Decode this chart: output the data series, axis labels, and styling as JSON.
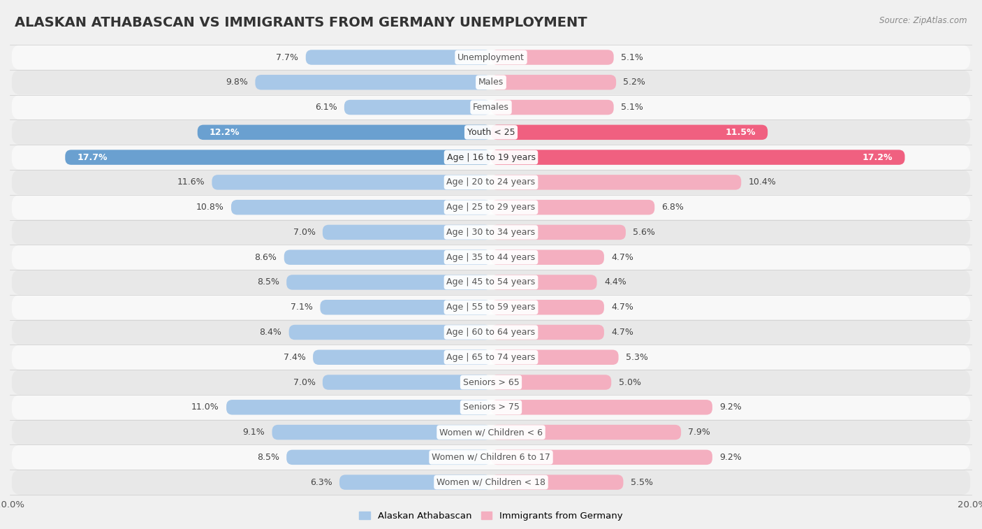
{
  "title": "ALASKAN ATHABASCAN VS IMMIGRANTS FROM GERMANY UNEMPLOYMENT",
  "source": "Source: ZipAtlas.com",
  "categories": [
    "Unemployment",
    "Males",
    "Females",
    "Youth < 25",
    "Age | 16 to 19 years",
    "Age | 20 to 24 years",
    "Age | 25 to 29 years",
    "Age | 30 to 34 years",
    "Age | 35 to 44 years",
    "Age | 45 to 54 years",
    "Age | 55 to 59 years",
    "Age | 60 to 64 years",
    "Age | 65 to 74 years",
    "Seniors > 65",
    "Seniors > 75",
    "Women w/ Children < 6",
    "Women w/ Children 6 to 17",
    "Women w/ Children < 18"
  ],
  "left_values": [
    7.7,
    9.8,
    6.1,
    12.2,
    17.7,
    11.6,
    10.8,
    7.0,
    8.6,
    8.5,
    7.1,
    8.4,
    7.4,
    7.0,
    11.0,
    9.1,
    8.5,
    6.3
  ],
  "right_values": [
    5.1,
    5.2,
    5.1,
    11.5,
    17.2,
    10.4,
    6.8,
    5.6,
    4.7,
    4.4,
    4.7,
    4.7,
    5.3,
    5.0,
    9.2,
    7.9,
    9.2,
    5.5
  ],
  "left_color": "#a8c8e8",
  "right_color": "#f4afc0",
  "left_color_highlight": "#6aa0d0",
  "right_color_highlight": "#f06080",
  "highlight_rows": [
    3,
    4
  ],
  "left_label": "Alaskan Athabascan",
  "right_label": "Immigrants from Germany",
  "xlim": 20.0,
  "background_color": "#f0f0f0",
  "row_bg_light": "#f8f8f8",
  "row_bg_dark": "#e8e8e8",
  "title_fontsize": 14,
  "label_fontsize": 9,
  "value_fontsize": 9,
  "bar_height": 0.6
}
